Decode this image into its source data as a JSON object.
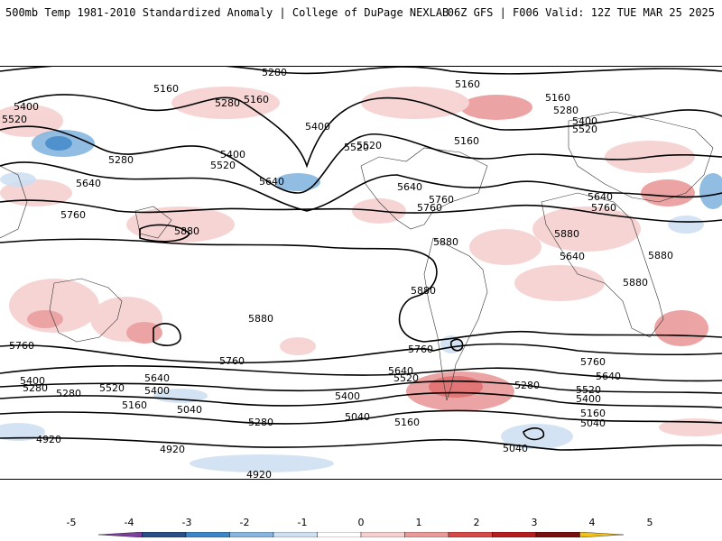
{
  "title": {
    "left": "500mb Temp 1981-2010 Standardized Anomaly | College of DuPage NEXLAB",
    "right": "06Z GFS | F006 Valid: 12Z TUE MAR 25 2025"
  },
  "colorbar": {
    "ticks": [
      "-5",
      "-4",
      "-3",
      "-2",
      "-1",
      "0",
      "1",
      "2",
      "3",
      "4",
      "5"
    ],
    "colors": [
      "#7b3fa0",
      "#2a4f88",
      "#3b86c8",
      "#86b6e0",
      "#cfe0f2",
      "#ffffff",
      "#f6d0d0",
      "#eb9a9a",
      "#d74848",
      "#b81d1d",
      "#7a0f0f",
      "#f3c018"
    ]
  },
  "contour_labels": [
    {
      "text": "5280"
    },
    {
      "text": "5160"
    },
    {
      "text": "5400"
    },
    {
      "text": "5520"
    },
    {
      "text": "5280"
    },
    {
      "text": "5400"
    },
    {
      "text": "5520"
    },
    {
      "text": "5280"
    },
    {
      "text": "5520"
    },
    {
      "text": "5400"
    },
    {
      "text": "5640"
    },
    {
      "text": "5640"
    },
    {
      "text": "5160"
    },
    {
      "text": "5640"
    },
    {
      "text": "5760"
    },
    {
      "text": "5760"
    },
    {
      "text": "5880"
    },
    {
      "text": "5880"
    },
    {
      "text": "5160"
    },
    {
      "text": "5280"
    },
    {
      "text": "5160"
    },
    {
      "text": "5400"
    },
    {
      "text": "5520"
    },
    {
      "text": "5640"
    },
    {
      "text": "5760"
    },
    {
      "text": "5880"
    },
    {
      "text": "5880"
    },
    {
      "text": "5880"
    },
    {
      "text": "5880"
    },
    {
      "text": "5880"
    },
    {
      "text": "5760"
    },
    {
      "text": "5760"
    },
    {
      "text": "5760"
    },
    {
      "text": "5640"
    },
    {
      "text": "5640"
    },
    {
      "text": "5520"
    },
    {
      "text": "5520"
    },
    {
      "text": "5400"
    },
    {
      "text": "5280"
    },
    {
      "text": "5280"
    },
    {
      "text": "5160"
    },
    {
      "text": "5160"
    },
    {
      "text": "5040"
    },
    {
      "text": "5040"
    },
    {
      "text": "5400"
    },
    {
      "text": "5280"
    },
    {
      "text": "5160"
    },
    {
      "text": "4920"
    },
    {
      "text": "4920"
    },
    {
      "text": "4920"
    },
    {
      "text": "5760"
    },
    {
      "text": "5640"
    },
    {
      "text": "5520"
    },
    {
      "text": "5520"
    },
    {
      "text": "5400"
    },
    {
      "text": "5040"
    },
    {
      "text": "5160"
    },
    {
      "text": "5280"
    },
    {
      "text": "5400"
    },
    {
      "text": "5640"
    },
    {
      "text": "5760"
    },
    {
      "text": "5040"
    }
  ]
}
